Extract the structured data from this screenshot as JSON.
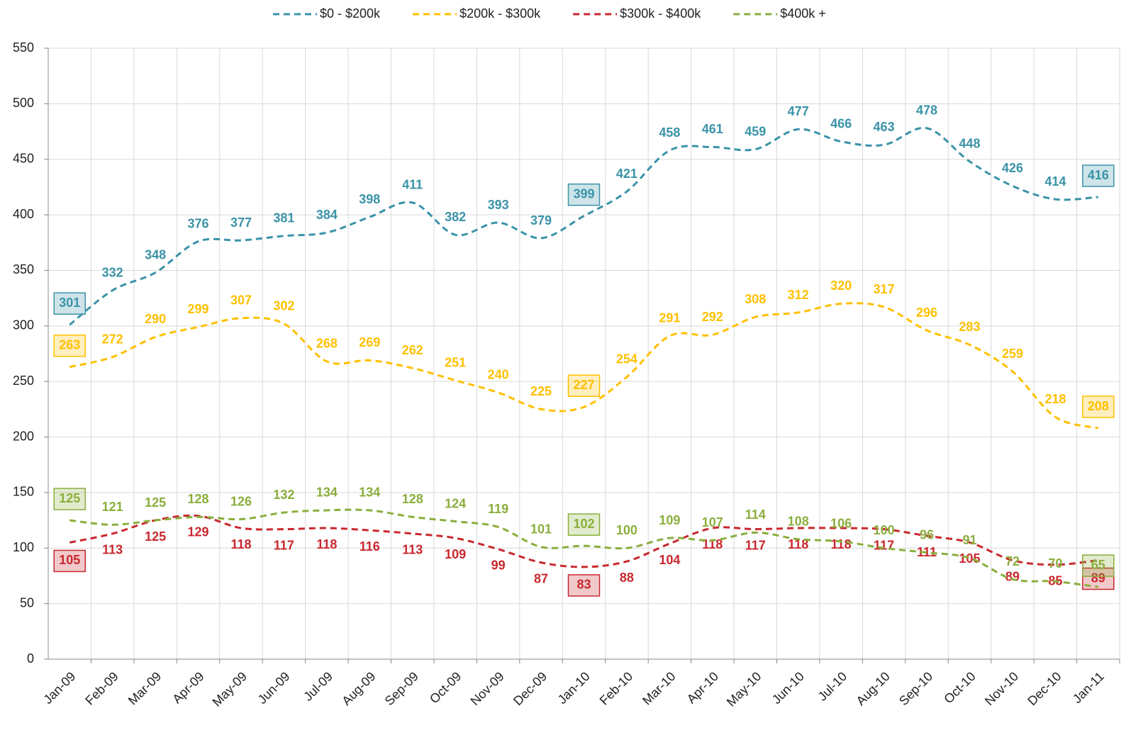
{
  "chart_data": {
    "type": "line",
    "categories": [
      "Jan-09",
      "Feb-09",
      "Mar-09",
      "Apr-09",
      "May-09",
      "Jun-09",
      "Jul-09",
      "Aug-09",
      "Sep-09",
      "Oct-09",
      "Nov-09",
      "Dec-09",
      "Jan-10",
      "Feb-10",
      "Mar-10",
      "Apr-10",
      "May-10",
      "Jun-10",
      "Jul-10",
      "Aug-10",
      "Sep-10",
      "Oct-10",
      "Nov-10",
      "Dec-10",
      "Jan-11"
    ],
    "series": [
      {
        "name": "$0 - $200k",
        "color": "#3a93a8",
        "values": [
          301,
          332,
          348,
          376,
          377,
          381,
          384,
          398,
          411,
          382,
          393,
          379,
          399,
          421,
          458,
          461,
          459,
          477,
          466,
          463,
          478,
          448,
          426,
          414,
          416
        ]
      },
      {
        "name": "$200k - $300k",
        "color": "#ffc000",
        "values": [
          263,
          272,
          290,
          299,
          307,
          302,
          268,
          269,
          262,
          251,
          240,
          225,
          227,
          254,
          291,
          292,
          308,
          312,
          320,
          317,
          296,
          283,
          259,
          218,
          208
        ]
      },
      {
        "name": "$300k - $400k",
        "color": "#c8282e",
        "values": [
          105,
          113,
          125,
          129,
          118,
          117,
          118,
          116,
          113,
          109,
          99,
          87,
          83,
          88,
          104,
          118,
          117,
          118,
          118,
          117,
          111,
          105,
          89,
          85,
          89
        ]
      },
      {
        "name": "$400k +",
        "color": "#8aae3c",
        "values": [
          125,
          121,
          125,
          128,
          126,
          132,
          134,
          134,
          128,
          124,
          119,
          101,
          102,
          100,
          109,
          107,
          114,
          108,
          106,
          100,
          96,
          91,
          72,
          70,
          65
        ]
      }
    ],
    "ylim": [
      0,
      550
    ],
    "yticks": [
      0,
      50,
      100,
      150,
      200,
      250,
      300,
      350,
      400,
      450,
      500,
      550
    ],
    "grid": true,
    "legend": "top"
  }
}
